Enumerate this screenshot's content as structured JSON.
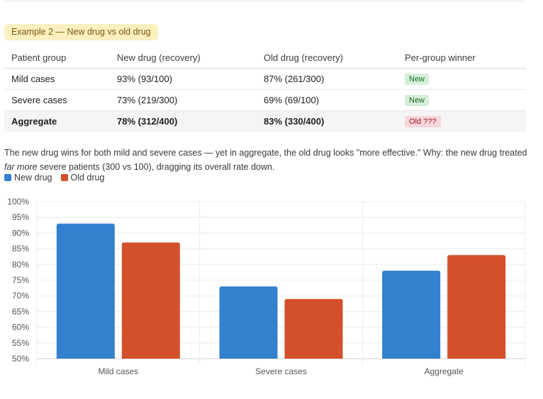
{
  "example_label": "Example 2 — New drug vs old drug",
  "table": {
    "headers": [
      "Patient group",
      "New drug (recovery)",
      "Old drug (recovery)",
      "Per-group winner"
    ],
    "rows": [
      {
        "group": "Mild cases",
        "new": "93% (93/100)",
        "old": "87% (261/300)",
        "winner": "New",
        "winner_type": "new"
      },
      {
        "group": "Severe cases",
        "new": "73% (219/300)",
        "old": "69% (69/100)",
        "winner": "New",
        "winner_type": "new"
      },
      {
        "group": "Aggregate",
        "new": "78% (312/400)",
        "old": "83% (330/400)",
        "winner": "Old ???",
        "winner_type": "old"
      }
    ]
  },
  "explanation": {
    "part1": "The new drug wins for both mild and severe cases — yet in aggregate, the old drug looks \"more effective.\" Why: the new drug treated ",
    "emphasis": "far more",
    "part2": " severe patients (300 vs 100), dragging its overall rate down."
  },
  "legend": [
    {
      "label": "New drug",
      "color": "#3380cf"
    },
    {
      "label": "Old drug",
      "color": "#d3502b"
    }
  ],
  "chart_data": {
    "type": "bar",
    "title": "",
    "xlabel": "",
    "ylabel": "",
    "categories": [
      "Mild cases",
      "Severe cases",
      "Aggregate"
    ],
    "series": [
      {
        "name": "New drug",
        "color": "#3380cf",
        "values": [
          93,
          73,
          78
        ]
      },
      {
        "name": "Old drug",
        "color": "#d3502b",
        "values": [
          87,
          69,
          83
        ]
      }
    ],
    "ylim": [
      50,
      100
    ],
    "yticks": [
      "50%",
      "55%",
      "60%",
      "65%",
      "70%",
      "75%",
      "80%",
      "85%",
      "90%",
      "95%",
      "100%"
    ],
    "grid": true,
    "legend_position": "top-left"
  }
}
